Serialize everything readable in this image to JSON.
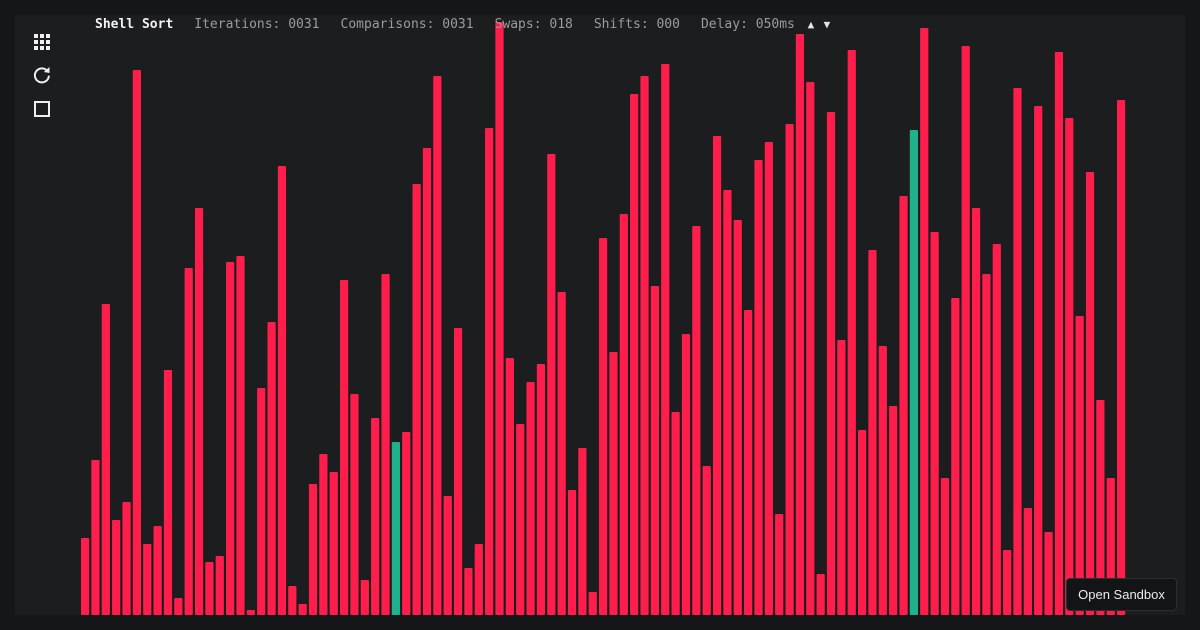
{
  "header": {
    "algorithm": "Shell Sort",
    "iterations": "Iterations: 0031",
    "comparisons": "Comparisons: 0031",
    "swaps": "Swaps: 018",
    "shifts": "Shifts: 000",
    "delay": "Delay: 050ms",
    "delay_up": "▲",
    "delay_down": "▼"
  },
  "sidebar": {
    "icons": [
      "grid-icon",
      "refresh-icon",
      "stop-icon"
    ]
  },
  "colors": {
    "bar": "#ff1e4b",
    "active": "#1fb08c",
    "background": "#1c1d1f",
    "page": "#151617"
  },
  "chart_data": {
    "type": "bar",
    "values": [
      77,
      155,
      311,
      95,
      113,
      545,
      71,
      89,
      245,
      17,
      347,
      407,
      53,
      59,
      353,
      359,
      5,
      227,
      293,
      449,
      29,
      11,
      131,
      161,
      143,
      335,
      221,
      35,
      197,
      341,
      173,
      183,
      431,
      467,
      539,
      119,
      287,
      47,
      71,
      487,
      593,
      257,
      191,
      233,
      251,
      461,
      323,
      125,
      167,
      23,
      377,
      263,
      401,
      521,
      539,
      329,
      551,
      203,
      281,
      389,
      149,
      479,
      425,
      395,
      305,
      455,
      473,
      101,
      491,
      581,
      533,
      41,
      503,
      275,
      565,
      185,
      365,
      269,
      209,
      419,
      485,
      587,
      383,
      137,
      317,
      569,
      407,
      341,
      371,
      65,
      527,
      107,
      509,
      83,
      563,
      497,
      299,
      443,
      215,
      137,
      515
    ],
    "highlighted_indices": [
      30,
      80
    ],
    "ylim": [
      0,
      600
    ]
  },
  "footer": {
    "open_sandbox": "Open Sandbox"
  }
}
